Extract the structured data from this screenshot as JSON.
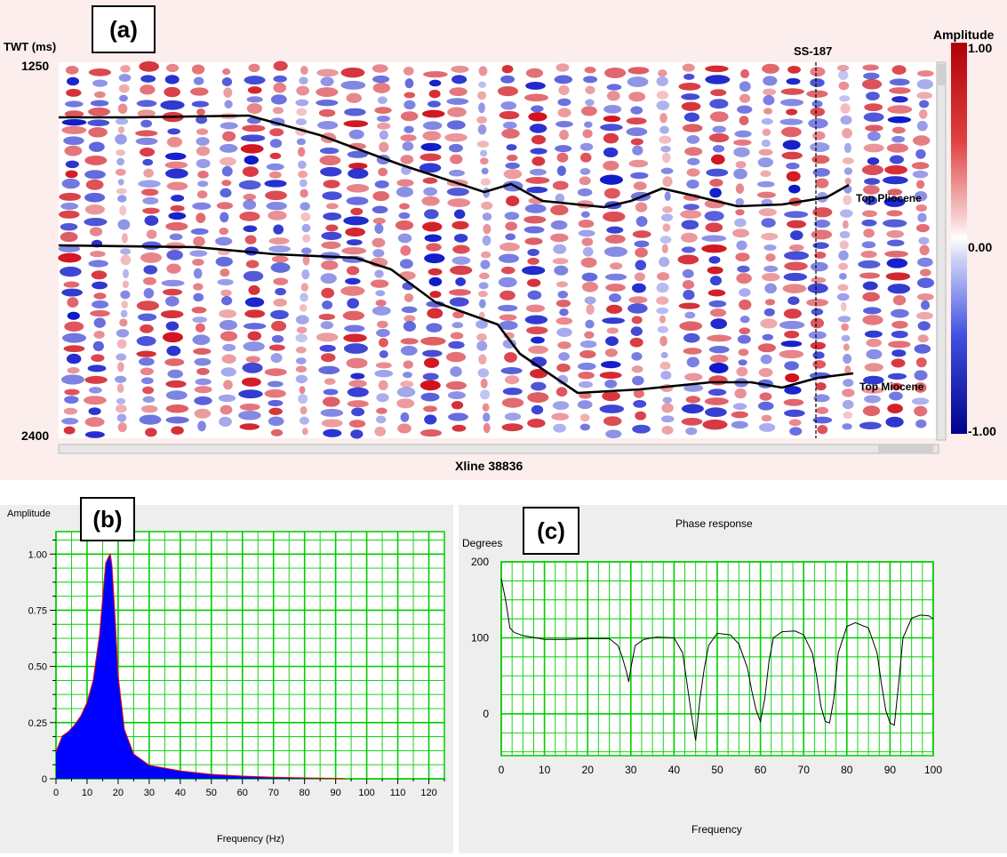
{
  "panel_a": {
    "label": "(a)",
    "y_axis_title": "TWT (ms)",
    "y_top": "1250",
    "y_bottom": "2400",
    "well_label": "SS-187",
    "x_axis_title": "Xline 38836",
    "colorbar_title": "Amplitude",
    "colorbar_ticks": [
      "1.00",
      "0.00",
      "-1.00"
    ],
    "horizons": [
      "Top Pliocene",
      "Top Miocene"
    ],
    "colors": {
      "red": "#d0101a",
      "blue": "#0a14c8",
      "horizon": "#000000"
    }
  },
  "panel_b": {
    "label": "(b)"
  },
  "panel_c": {
    "label": "(c)"
  },
  "chart_data": [
    {
      "type": "area",
      "title": "",
      "ylabel": "Amplitude",
      "xlabel": "Frequency (Hz)",
      "xlim": [
        0,
        125
      ],
      "ylim": [
        0,
        1.1
      ],
      "x_ticks": [
        "0",
        "10",
        "20",
        "30",
        "40",
        "50",
        "60",
        "70",
        "80",
        "90",
        "100",
        "110",
        "120"
      ],
      "y_ticks": [
        "0",
        "0.25",
        "0.50",
        "0.75",
        "1.00"
      ],
      "x": [
        0,
        2,
        4,
        6,
        8,
        10,
        12,
        14,
        15,
        16,
        17,
        17.5,
        18,
        19,
        20,
        22,
        25,
        30,
        40,
        50,
        60,
        70,
        80,
        90,
        93
      ],
      "y": [
        0.12,
        0.19,
        0.21,
        0.24,
        0.28,
        0.34,
        0.44,
        0.64,
        0.8,
        0.96,
        0.99,
        1.0,
        0.95,
        0.72,
        0.46,
        0.22,
        0.11,
        0.06,
        0.035,
        0.02,
        0.012,
        0.007,
        0.004,
        0.002,
        0.0
      ],
      "colors": {
        "fill": "#0000ff",
        "outline": "#ff0000",
        "grid": "#00cc00"
      }
    },
    {
      "type": "line",
      "title": "Phase response",
      "ylabel": "Degrees",
      "xlabel": "Frequency",
      "xlim": [
        0,
        100
      ],
      "ylim": [
        -55,
        200
      ],
      "x_ticks": [
        "0",
        "10",
        "20",
        "30",
        "40",
        "50",
        "60",
        "70",
        "80",
        "90",
        "100"
      ],
      "y_ticks": [
        "200",
        "100",
        "0"
      ],
      "x": [
        0,
        1,
        2,
        3,
        5,
        8,
        10,
        15,
        20,
        25,
        27,
        28,
        29,
        29.5,
        30,
        31,
        33,
        36,
        40,
        42,
        43,
        44,
        45,
        46,
        47,
        48,
        50,
        53,
        55,
        57,
        58,
        59,
        60,
        61,
        62,
        63,
        65,
        68,
        70,
        72,
        73,
        74,
        75,
        76,
        77,
        78,
        80,
        82,
        85,
        87,
        88,
        89,
        90,
        91,
        92,
        93,
        95,
        97,
        99,
        100
      ],
      "y": [
        178,
        150,
        113,
        107,
        103,
        100,
        98,
        98,
        99,
        99,
        90,
        75,
        55,
        42,
        60,
        90,
        98,
        101,
        100,
        80,
        40,
        0,
        -35,
        20,
        60,
        90,
        106,
        104,
        92,
        60,
        30,
        5,
        -10,
        20,
        70,
        100,
        108,
        109,
        104,
        80,
        50,
        10,
        -10,
        -12,
        20,
        80,
        115,
        120,
        113,
        80,
        40,
        5,
        -12,
        -15,
        40,
        100,
        126,
        130,
        129,
        125
      ],
      "colors": {
        "line": "#000000",
        "grid": "#00cc00"
      }
    }
  ]
}
